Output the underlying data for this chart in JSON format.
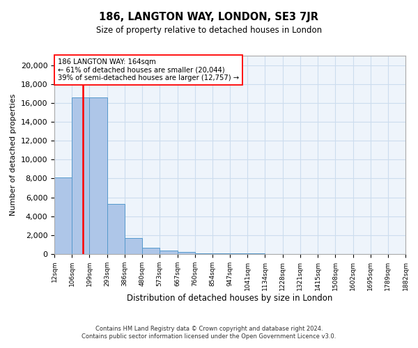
{
  "title1": "186, LANGTON WAY, LONDON, SE3 7JR",
  "title2": "Size of property relative to detached houses in London",
  "xlabel": "Distribution of detached houses by size in London",
  "ylabel": "Number of detached properties",
  "bar_color": "#aec6e8",
  "bar_edge_color": "#5599cc",
  "grid_color": "#ccddee",
  "background_color": "#eef4fb",
  "red_line_color": "red",
  "property_size": 164,
  "annotation_line1": "186 LANGTON WAY: 164sqm",
  "annotation_line2": "← 61% of detached houses are smaller (20,044)",
  "annotation_line3": "39% of semi-detached houses are larger (12,757) →",
  "bin_edges": [
    12,
    106,
    199,
    293,
    386,
    480,
    573,
    667,
    760,
    854,
    947,
    1041,
    1134,
    1228,
    1321,
    1415,
    1508,
    1602,
    1695,
    1789,
    1882
  ],
  "bar_heights": [
    8100,
    16600,
    16600,
    5300,
    1700,
    650,
    350,
    200,
    100,
    80,
    60,
    40,
    30,
    20,
    15,
    10,
    8,
    6,
    4,
    3
  ],
  "ylim": [
    0,
    21000
  ],
  "yticks": [
    0,
    2000,
    4000,
    6000,
    8000,
    10000,
    12000,
    14000,
    16000,
    18000,
    20000
  ],
  "footer1": "Contains HM Land Registry data © Crown copyright and database right 2024.",
  "footer2": "Contains public sector information licensed under the Open Government Licence v3.0."
}
